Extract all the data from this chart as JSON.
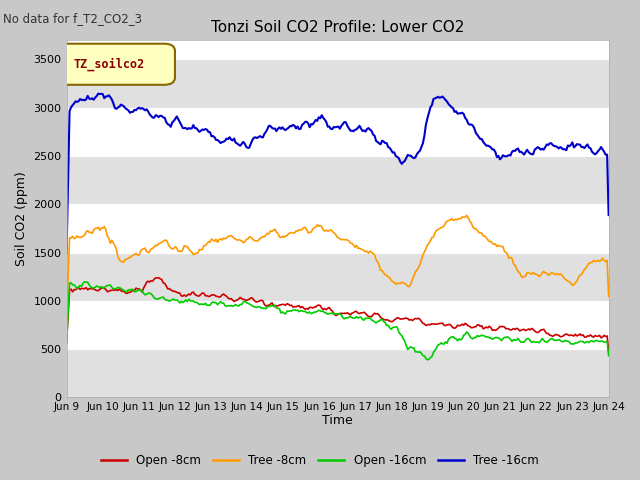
{
  "title": "Tonzi Soil CO2 Profile: Lower CO2",
  "note": "No data for f_T2_CO2_3",
  "ylabel": "Soil CO2 (ppm)",
  "xlabel": "Time",
  "ylim": [
    0,
    3700
  ],
  "yticks": [
    0,
    500,
    1000,
    1500,
    2000,
    2500,
    3000,
    3500
  ],
  "xtick_labels": [
    "Jun 9",
    "Jun 10",
    "Jun 11",
    "Jun 12",
    "Jun 13",
    "Jun 14",
    "Jun 15",
    "Jun 16",
    "Jun 17",
    "Jun 18",
    "Jun 19",
    "Jun 20",
    "Jun 21",
    "Jun 22",
    "Jun 23",
    "Jun 24"
  ],
  "legend_label_box": "TZ_soilco2",
  "fig_bg_color": "#c8c8c8",
  "plot_bg_color": "#ffffff",
  "band_color": "#e0e0e0",
  "series": {
    "open_8cm": {
      "color": "#cc0000",
      "label": "Open -8cm"
    },
    "tree_8cm": {
      "color": "#ff9900",
      "label": "Tree -8cm"
    },
    "open_16cm": {
      "color": "#00cc00",
      "label": "Open -16cm"
    },
    "tree_16cm": {
      "color": "#0000cc",
      "label": "Tree -16cm"
    }
  }
}
